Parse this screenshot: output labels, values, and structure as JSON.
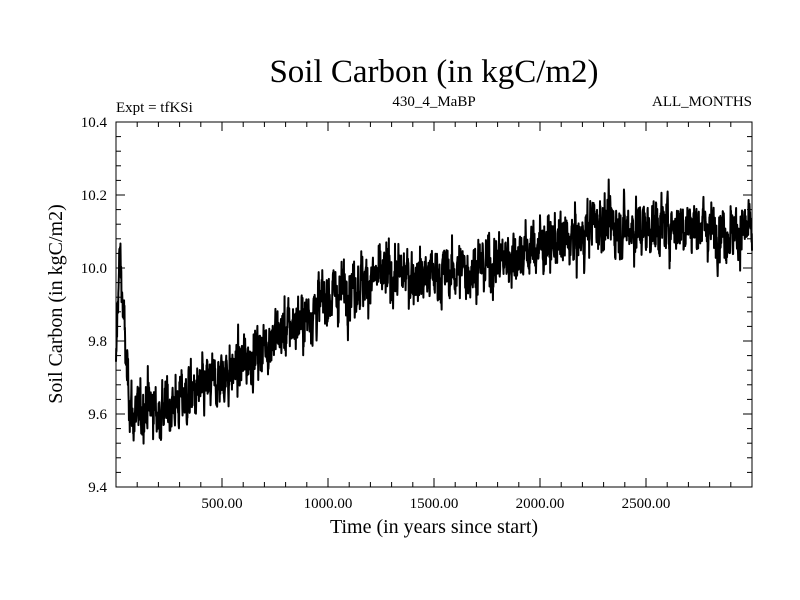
{
  "chart_data": {
    "type": "line",
    "title": "Soil Carbon (in kgC/m2)",
    "subtitle_left": "Expt = tfKSi",
    "subtitle_center": "430_4_MaBP",
    "subtitle_right": "ALL_MONTHS",
    "xlabel": "Time (in years since start)",
    "ylabel": "Soil Carbon (in kgC/m2)",
    "xlim": [
      0,
      3000
    ],
    "ylim": [
      9.4,
      10.4
    ],
    "x_ticks": [
      500,
      1000,
      1500,
      2000,
      2500
    ],
    "x_tick_labels": [
      "500.00",
      "1000.00",
      "1500.00",
      "2000.00",
      "2500.00"
    ],
    "y_ticks": [
      9.4,
      9.6,
      9.8,
      10.0,
      10.2,
      10.4
    ],
    "y_tick_labels": [
      "9.4",
      "9.6",
      "9.8",
      "10.0",
      "10.2",
      "10.4"
    ],
    "grid": false,
    "series": [
      {
        "name": "Soil Carbon",
        "color": "#000000",
        "noise_amplitude": 0.05,
        "trend_x": [
          0,
          10,
          20,
          30,
          50,
          80,
          110,
          150,
          200,
          250,
          300,
          400,
          500,
          600,
          700,
          800,
          900,
          1000,
          1100,
          1200,
          1300,
          1400,
          1500,
          1600,
          1700,
          1800,
          1900,
          2000,
          2100,
          2200,
          2250,
          2300,
          2400,
          2500,
          2600,
          2700,
          2800,
          2900,
          3000
        ],
        "trend_y": [
          9.7,
          9.95,
          10.03,
          9.92,
          9.72,
          9.58,
          9.6,
          9.64,
          9.6,
          9.62,
          9.64,
          9.66,
          9.7,
          9.74,
          9.79,
          9.83,
          9.87,
          9.92,
          9.95,
          9.97,
          9.98,
          9.98,
          9.98,
          9.99,
          10.0,
          10.02,
          10.04,
          10.06,
          10.07,
          10.08,
          10.13,
          10.12,
          10.11,
          10.11,
          10.12,
          10.12,
          10.11,
          10.1,
          10.1
        ]
      }
    ]
  }
}
